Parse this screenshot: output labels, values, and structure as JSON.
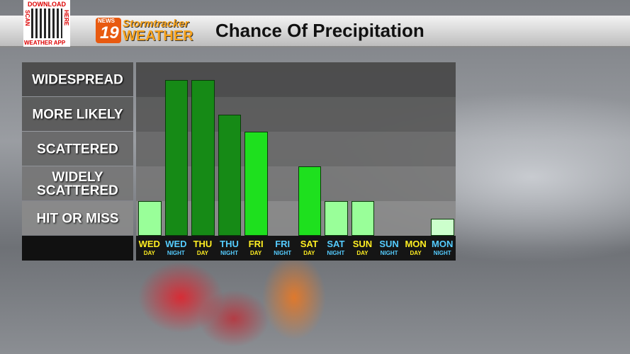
{
  "branding": {
    "qr_top": "DOWNLOAD",
    "qr_left": "SCAN",
    "qr_right": "HERE",
    "qr_bottom": "WEATHER APP",
    "station": "NEWS",
    "channel": "19",
    "brand_top": "Stormtracker",
    "brand_bottom": "WEATHER"
  },
  "chart_data": {
    "type": "bar",
    "title": "Chance Of Precipitation",
    "categories": [
      "WED",
      "WED",
      "THU",
      "THU",
      "FRI",
      "FRI",
      "SAT",
      "SAT",
      "SUN",
      "SUN",
      "MON",
      "MON"
    ],
    "subcategories": [
      "DAY",
      "NIGHT",
      "DAY",
      "NIGHT",
      "DAY",
      "NIGHT",
      "DAY",
      "NIGHT",
      "DAY",
      "NIGHT",
      "DAY",
      "NIGHT"
    ],
    "values": [
      1,
      4.5,
      4.5,
      3.5,
      3,
      0,
      2,
      1,
      1,
      0,
      0,
      0.5
    ],
    "colors": [
      "#99ff99",
      "#168a16",
      "#168a16",
      "#168a16",
      "#1ee01e",
      "#1ee01e",
      "#1ee01e",
      "#99ff99",
      "#99ff99",
      "#99ff99",
      "#ccffcc",
      "#ccffcc"
    ],
    "label_colors": {
      "DAY": "#ffee22",
      "NIGHT": "#55ccff"
    },
    "ylim": [
      0,
      5
    ],
    "yticks": [
      {
        "value": 0.5,
        "label": "HIT OR MISS"
      },
      {
        "value": 1.5,
        "label": "WIDELY SCATTERED"
      },
      {
        "value": 2.5,
        "label": "SCATTERED"
      },
      {
        "value": 3.5,
        "label": "MORE LIKELY"
      },
      {
        "value": 4.5,
        "label": "WIDESPREAD"
      }
    ]
  }
}
